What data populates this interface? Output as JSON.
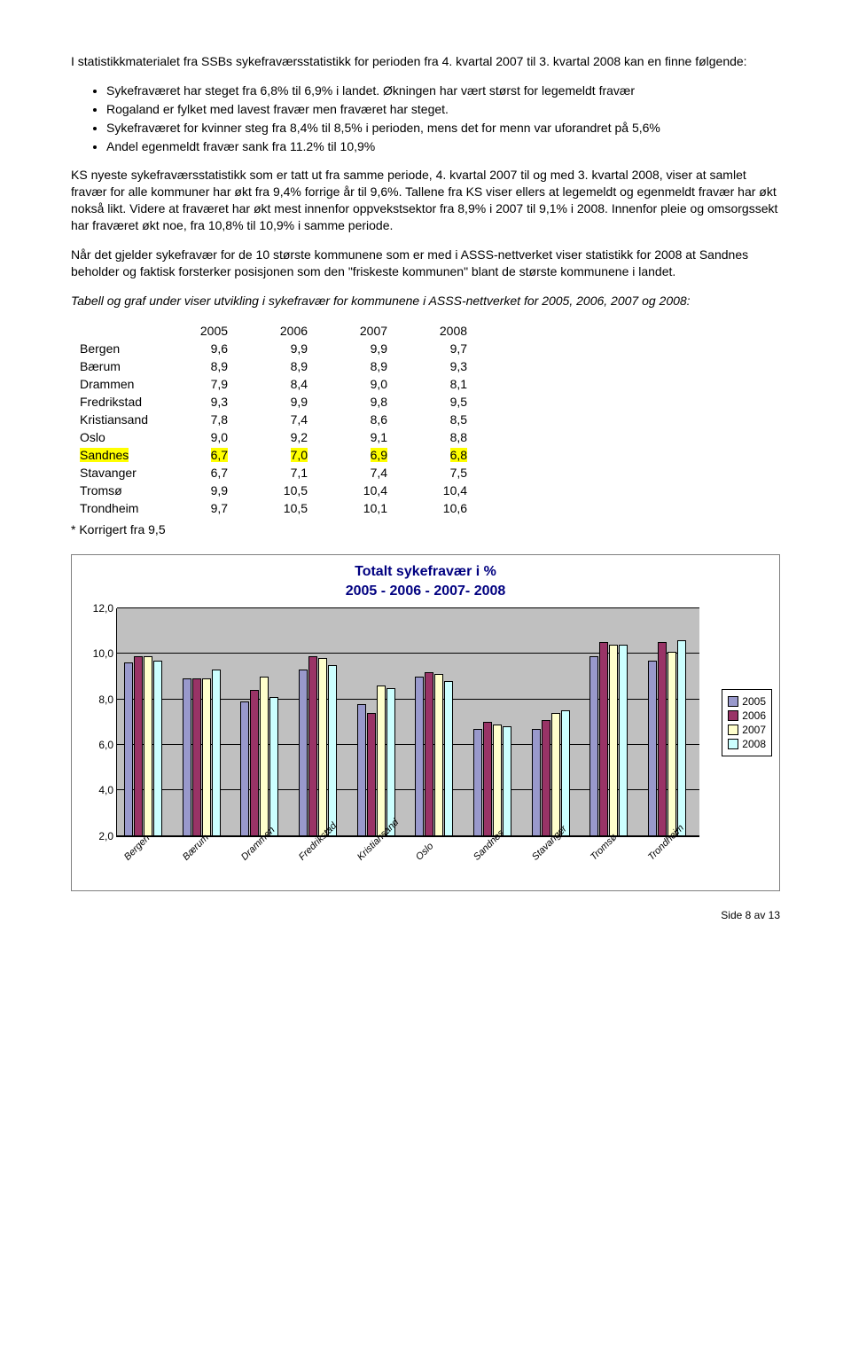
{
  "para1_intro": "I statistikkmaterialet fra SSBs sykefraværsstatistikk for perioden fra 4. kvartal 2007 til 3. kvartal 2008 kan en finne følgende:",
  "bullets1": [
    "Sykefraværet har steget fra 6,8% til 6,9% i landet. Økningen har vært størst for legemeldt fravær",
    "Rogaland er fylket med lavest fravær men fraværet har steget.",
    "Sykefraværet for kvinner steg fra 8,4% til 8,5% i perioden, mens det for menn var uforandret på 5,6%",
    "Andel egenmeldt fravær sank fra 11.2% til 10,9%"
  ],
  "para2": "KS nyeste sykefraværsstatistikk som er tatt ut fra samme periode, 4. kvartal 2007 til og med 3. kvartal 2008, viser at samlet fravær for alle kommuner har økt fra 9,4% forrige år til 9,6%. Tallene fra KS viser ellers at legemeldt og egenmeldt fravær har økt nokså likt. Videre at fraværet har økt mest innenfor oppvekstsektor fra 8,9% i 2007 til 9,1% i 2008. Innenfor pleie og omsorgssekt har fraværet økt noe, fra 10,8% til 10,9% i samme periode.",
  "para3": "Når det gjelder sykefravær for de 10 største kommunene som er med i ASSS-nettverket viser statistikk for 2008 at Sandnes beholder og faktisk forsterker posisjonen som den \"friskeste kommunen\" blant de største kommunene i landet.",
  "para4_italic": "Tabell og graf under viser utvikling i sykefravær for kommunene i ASSS-nettverket for 2005, 2006, 2007 og 2008:",
  "table": {
    "years": [
      "2005",
      "2006",
      "2007",
      "2008"
    ],
    "rows": [
      {
        "name": "Bergen",
        "v": [
          "9,6",
          "9,9",
          "9,9",
          "9,7"
        ],
        "hl": false
      },
      {
        "name": "Bærum",
        "v": [
          "8,9",
          "8,9",
          "8,9",
          "9,3"
        ],
        "hl": false
      },
      {
        "name": "Drammen",
        "v": [
          "7,9",
          "8,4",
          "9,0",
          "8,1"
        ],
        "hl": false
      },
      {
        "name": "Fredrikstad",
        "v": [
          "9,3",
          "9,9",
          "9,8",
          "9,5"
        ],
        "hl": false
      },
      {
        "name": "Kristiansand",
        "v": [
          "7,8",
          "7,4",
          "8,6",
          "8,5"
        ],
        "hl": false
      },
      {
        "name": "Oslo",
        "v": [
          "9,0",
          "9,2",
          "9,1",
          "8,8"
        ],
        "hl": false
      },
      {
        "name": "Sandnes",
        "v": [
          "6,7",
          "7,0",
          "6,9",
          "6,8"
        ],
        "hl": true
      },
      {
        "name": "Stavanger",
        "v": [
          "6,7",
          "7,1",
          "7,4",
          "7,5"
        ],
        "hl": false
      },
      {
        "name": "Tromsø",
        "v": [
          "9,9",
          "10,5",
          "10,4",
          "10,4"
        ],
        "hl": false
      },
      {
        "name": "Trondheim",
        "v": [
          "9,7",
          "10,5",
          "10,1",
          "10,6"
        ],
        "hl": false
      }
    ],
    "footnote": "* Korrigert fra 9,5"
  },
  "chart": {
    "title_l1": "Totalt sykefravær i %",
    "title_l2": "2005 - 2006 - 2007- 2008",
    "title_color": "#000080",
    "background": "#ffffff",
    "plot_bg": "#c0c0c0",
    "ymin": 2.0,
    "ymax": 12.0,
    "ytick_step": 2.0,
    "yticks": [
      "2,0",
      "4,0",
      "6,0",
      "8,0",
      "10,0",
      "12,0"
    ],
    "series": [
      {
        "label": "2005",
        "color": "#9999cc"
      },
      {
        "label": "2006",
        "color": "#993366"
      },
      {
        "label": "2007",
        "color": "#ffffcc"
      },
      {
        "label": "2008",
        "color": "#ccffff"
      }
    ],
    "categories": [
      "Bergen",
      "Bærum",
      "Drammen",
      "Fredrikstad",
      "Kristiansand",
      "Oslo",
      "Sandnes",
      "Stavanger",
      "Tromsø",
      "Trondheim"
    ],
    "values": [
      [
        9.6,
        9.9,
        9.9,
        9.7
      ],
      [
        8.9,
        8.9,
        8.9,
        9.3
      ],
      [
        7.9,
        8.4,
        9.0,
        8.1
      ],
      [
        9.3,
        9.9,
        9.8,
        9.5
      ],
      [
        7.8,
        7.4,
        8.6,
        8.5
      ],
      [
        9.0,
        9.2,
        9.1,
        8.8
      ],
      [
        6.7,
        7.0,
        6.9,
        6.8
      ],
      [
        6.7,
        7.1,
        7.4,
        7.5
      ],
      [
        9.9,
        10.5,
        10.4,
        10.4
      ],
      [
        9.7,
        10.5,
        10.1,
        10.6
      ]
    ]
  },
  "page_footer": "Side 8 av 13"
}
